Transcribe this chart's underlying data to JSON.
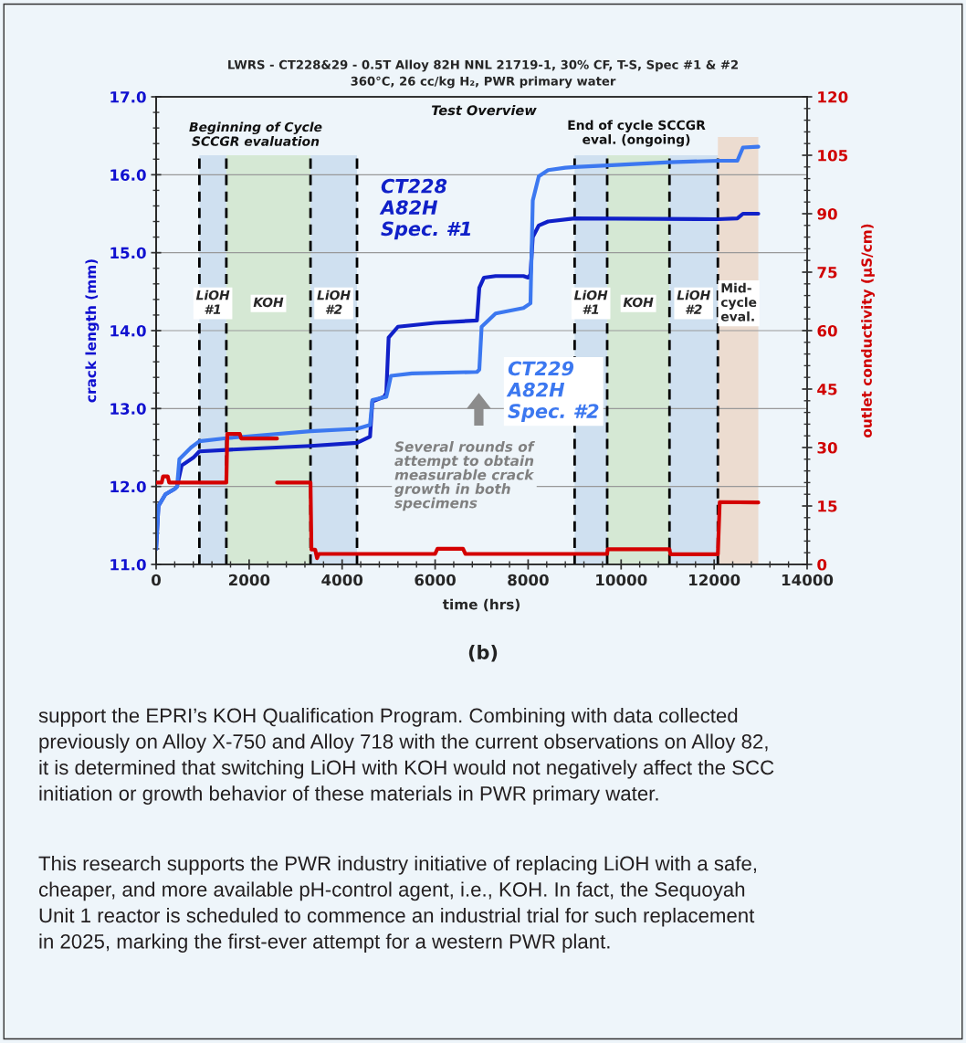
{
  "chart_data": {
    "type": "line",
    "title": "LWRS - CT228&29 - 0.5T Alloy 82H NNL 21719-1, 30% CF, T-S, Spec #1 & #2",
    "subtitle": "360°C, 26 cc/kg H₂, PWR primary water",
    "xlabel": "time (hrs)",
    "ylabel": "crack length (mm)",
    "y2label": "outlet conductivity (µS/cm)",
    "xlim": [
      0,
      14000
    ],
    "xticks": [
      0,
      2000,
      4000,
      6000,
      8000,
      10000,
      12000,
      14000
    ],
    "ylim": [
      11,
      17
    ],
    "yticks": [
      {
        "value": 11,
        "label": "11.0"
      },
      {
        "value": 12,
        "label": "12.0"
      },
      {
        "value": 13,
        "label": "13.0"
      },
      {
        "value": 14,
        "label": "14.0"
      },
      {
        "value": 15,
        "label": "15.0"
      },
      {
        "value": 16,
        "label": "16.0"
      },
      {
        "value": 17,
        "label": "17.0"
      }
    ],
    "y2lim": [
      0,
      120
    ],
    "y2ticks": [
      0,
      15,
      30,
      45,
      60,
      75,
      90,
      105,
      120
    ],
    "grid": "y",
    "series": [
      {
        "name": "CT228\nA82H\nSpec. #1",
        "color": "#1020c8",
        "x": [
          0,
          50,
          200,
          400,
          450,
          550,
          800,
          930,
          1510,
          3320,
          4320,
          4600,
          4650,
          4900,
          4950,
          5000,
          5200,
          6000,
          6900,
          6950,
          7050,
          7300,
          7900,
          8000,
          8050,
          8100,
          8230,
          8430,
          9000,
          12080,
          12500,
          12620,
          12950
        ],
        "values": [
          11.2,
          11.75,
          11.9,
          11.97,
          12.0,
          12.27,
          12.37,
          12.45,
          12.47,
          12.52,
          12.56,
          12.64,
          13.09,
          13.15,
          13.2,
          13.91,
          14.05,
          14.1,
          14.13,
          14.55,
          14.68,
          14.7,
          14.7,
          14.68,
          14.72,
          15.2,
          15.35,
          15.4,
          15.44,
          15.43,
          15.44,
          15.5,
          15.5
        ]
      },
      {
        "name": "CT229\nA82H\nSpec. #2",
        "color": "#3c78f0",
        "x": [
          0,
          50,
          200,
          400,
          450,
          500,
          750,
          930,
          1510,
          3320,
          4320,
          4600,
          4650,
          4950,
          4970,
          5050,
          5500,
          6900,
          6950,
          7000,
          7300,
          7900,
          8050,
          8100,
          8230,
          8430,
          8800,
          9000,
          9700,
          11040,
          12080,
          12500,
          12620,
          12950
        ],
        "values": [
          11.2,
          11.75,
          11.9,
          11.97,
          12.0,
          12.35,
          12.5,
          12.58,
          12.62,
          12.71,
          12.74,
          12.79,
          13.11,
          13.15,
          13.2,
          13.42,
          13.45,
          13.47,
          13.5,
          14.05,
          14.22,
          14.29,
          14.35,
          15.67,
          15.98,
          16.06,
          16.09,
          16.1,
          16.12,
          16.16,
          16.18,
          16.18,
          16.35,
          16.36
        ]
      },
      {
        "color": "#d40000",
        "axis": "y2",
        "x": [
          0,
          120,
          150,
          250,
          280,
          1510,
          1530,
          1800,
          1830,
          2600
        ],
        "values": [
          21,
          21,
          22.6,
          22.6,
          21,
          21,
          33.5,
          33.5,
          32.3,
          32.3
        ]
      },
      {
        "color": "#d40000",
        "axis": "y2",
        "x": [
          2600,
          3320,
          3340,
          3420,
          3460,
          3500,
          6000,
          6050,
          6600,
          6650,
          9700,
          9710,
          11040,
          11060,
          12080,
          12120,
          12950
        ],
        "values": [
          21,
          21,
          3.8,
          3.8,
          1.6,
          2.7,
          2.7,
          4.0,
          4.0,
          2.7,
          2.7,
          3.9,
          3.9,
          2.6,
          2.6,
          16.0,
          15.9
        ]
      }
    ],
    "bands": [
      {
        "axis": "x",
        "from": 930,
        "to": 1510,
        "label": "LiOH\n#1",
        "color": "#cfe0f0"
      },
      {
        "axis": "x",
        "from": 1510,
        "to": 3320,
        "label": "KOH",
        "color": "#d5e8d4"
      },
      {
        "axis": "x",
        "from": 3320,
        "to": 4320,
        "label": "LiOH\n#2",
        "color": "#cfe0f0"
      },
      {
        "axis": "x",
        "from": 9000,
        "to": 9700,
        "label": "LiOH\n#1",
        "color": "#cfe0f0"
      },
      {
        "axis": "x",
        "from": 9700,
        "to": 11040,
        "label": "KOH",
        "color": "#d5e8d4"
      },
      {
        "axis": "x",
        "from": 11040,
        "to": 12080,
        "label": "LiOH\n#2",
        "color": "#cfe0f0"
      },
      {
        "axis": "x",
        "from": 12080,
        "to": 12950,
        "label": "Mid-\ncycle\neval.",
        "color": "#ecdcd0"
      }
    ],
    "ref_lines": [
      {
        "axis": "x",
        "value": 930,
        "color": "#000000",
        "line_style": "dashed"
      },
      {
        "axis": "x",
        "value": 1510,
        "color": "#000000",
        "line_style": "dashed"
      },
      {
        "axis": "x",
        "value": 3320,
        "color": "#000000",
        "line_style": "dashed"
      },
      {
        "axis": "x",
        "value": 4320,
        "color": "#000000",
        "line_style": "dashed"
      },
      {
        "axis": "x",
        "value": 9000,
        "color": "#000000",
        "line_style": "dashed"
      },
      {
        "axis": "x",
        "value": 9700,
        "color": "#000000",
        "line_style": "dashed"
      },
      {
        "axis": "x",
        "value": 11040,
        "color": "#000000",
        "line_style": "dashed"
      },
      {
        "axis": "x",
        "value": 12080,
        "color": "#000000",
        "line_style": "dashed"
      }
    ],
    "annotations": [
      "Test Overview",
      "Beginning of Cycle\nSCCGR evaluation",
      "End of cycle SCCGR\neval. (ongoing)",
      "Several rounds of\nattempt to obtain\nmeasurable crack\ngrowth in both\nspecimens",
      "(b)",
      "support the EPRI’s KOH Qualification Program. Combining with data collected\npreviously on Alloy X-750 and Alloy 718 with the current observations on Alloy 82,\nit is determined that switching LiOH with KOH would not negatively affect the SCC\ninitiation or growth behavior of these materials in PWR primary water.",
      "This research supports the PWR industry initiative of replacing LiOH with a safe,\ncheaper, and more available pH-control agent, i.e., KOH. In fact, the Sequoyah\nUnit 1 reactor is scheduled to commence an industrial trial for such replacement\nin 2025, marking the first-ever attempt for a western PWR plant."
    ]
  }
}
